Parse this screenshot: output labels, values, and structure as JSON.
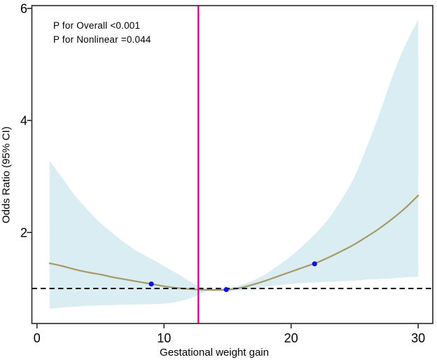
{
  "figure_title": "Restricted cubic spline of odds ratio by gestational weight gain",
  "colors": {
    "background": "#ffffff",
    "ci_band": "#d9edf2",
    "spline_curve": "#a69a67",
    "vertical_reference_line": "#e20a84",
    "knot_points": "#1212dd",
    "reference_dashed_line": "#000000",
    "axis_frame": "#333333",
    "text": "#000000"
  },
  "chart_data": {
    "type": "line",
    "subtype": "restricted cubic spline with 95% CI band",
    "title": "",
    "xlabel": "Gestational weight gain",
    "ylabel": "Odds Ratio (95% CI)",
    "annotations": [
      "P for Overall <0.001",
      "P for Nonlinear =0.044"
    ],
    "xlim": [
      -0.4,
      31.15
    ],
    "ylim": [
      0.375,
      6.05
    ],
    "x_ticks": [
      0,
      10,
      20,
      30
    ],
    "y_ticks": [
      2,
      4,
      6
    ],
    "grid": false,
    "legend": "none",
    "reference_line": {
      "y": 1,
      "style": "dashed"
    },
    "vertical_line": {
      "x": 12.7
    },
    "x": [
      1,
      2,
      3,
      4,
      5,
      6,
      7,
      8,
      9,
      10,
      11,
      12,
      13,
      13.6,
      14,
      15,
      16,
      17,
      18,
      19,
      20,
      21,
      22,
      23,
      24,
      25,
      26,
      27,
      28,
      29,
      30
    ],
    "series": [
      {
        "name": "Odds Ratio",
        "values": [
          1.45,
          1.4,
          1.34,
          1.29,
          1.25,
          1.2,
          1.16,
          1.12,
          1.08,
          1.04,
          1.01,
          0.99,
          0.978,
          0.975,
          0.974,
          0.98,
          1.01,
          1.07,
          1.14,
          1.22,
          1.3,
          1.38,
          1.46,
          1.56,
          1.67,
          1.79,
          1.93,
          2.08,
          2.25,
          2.44,
          2.66
        ]
      },
      {
        "name": "CI lower",
        "values": [
          0.64,
          0.66,
          0.675,
          0.69,
          0.7,
          0.705,
          0.71,
          0.715,
          0.72,
          0.73,
          0.76,
          0.82,
          0.92,
          0.955,
          0.95,
          0.95,
          0.97,
          1.0,
          1.03,
          1.06,
          1.08,
          1.1,
          1.11,
          1.12,
          1.13,
          1.14,
          1.16,
          1.17,
          1.18,
          1.2,
          1.21
        ]
      },
      {
        "name": "CI upper",
        "values": [
          3.28,
          2.97,
          2.66,
          2.4,
          2.17,
          1.98,
          1.8,
          1.65,
          1.53,
          1.4,
          1.27,
          1.13,
          1.02,
          0.99,
          1.0,
          1.01,
          1.06,
          1.14,
          1.26,
          1.41,
          1.58,
          1.78,
          2.0,
          2.26,
          2.6,
          3.0,
          3.55,
          4.15,
          4.8,
          5.35,
          5.8
        ]
      }
    ],
    "markers": {
      "points": [
        {
          "x": 9,
          "y": 1.08
        },
        {
          "x": 14.9,
          "y": 0.98
        },
        {
          "x": 21.85,
          "y": 1.44
        }
      ]
    }
  }
}
